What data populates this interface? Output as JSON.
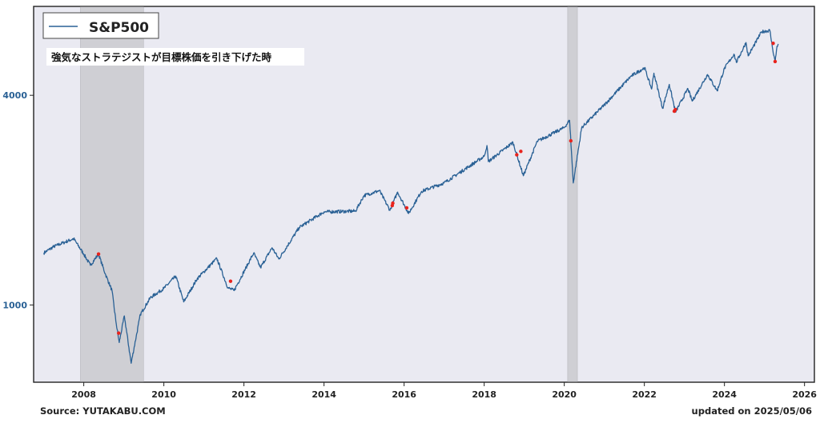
{
  "chart_data": {
    "type": "line",
    "legend": {
      "label": "S&P500",
      "placement": "top-left"
    },
    "annotation": "強気なストラテジストが目標株価を引き下げた時",
    "y_scale": "log",
    "y_ticks": [
      {
        "value": 1000,
        "label": "1000"
      },
      {
        "value": 4000,
        "label": "4000"
      }
    ],
    "x_ticks": [
      "2008",
      "2010",
      "2012",
      "2014",
      "2016",
      "2018",
      "2020",
      "2022",
      "2024",
      "2026"
    ],
    "xlim": [
      "2006-10-01",
      "2026-04-01"
    ],
    "ylim": [
      600,
      7200
    ],
    "grid": false,
    "series": [
      {
        "name": "S&P500",
        "color": "#2a6195",
        "points": [
          [
            "2007-01-01",
            1410
          ],
          [
            "2007-04-01",
            1470
          ],
          [
            "2007-07-01",
            1510
          ],
          [
            "2007-10-01",
            1550
          ],
          [
            "2008-01-01",
            1400
          ],
          [
            "2008-03-01",
            1300
          ],
          [
            "2008-05-15",
            1400
          ],
          [
            "2008-07-15",
            1230
          ],
          [
            "2008-09-15",
            1100
          ],
          [
            "2008-10-20",
            900
          ],
          [
            "2008-11-20",
            780
          ],
          [
            "2009-01-06",
            930
          ],
          [
            "2009-03-09",
            680
          ],
          [
            "2009-06-01",
            940
          ],
          [
            "2009-09-01",
            1050
          ],
          [
            "2009-12-31",
            1115
          ],
          [
            "2010-04-20",
            1210
          ],
          [
            "2010-07-01",
            1020
          ],
          [
            "2010-11-01",
            1190
          ],
          [
            "2011-04-29",
            1360
          ],
          [
            "2011-08-08",
            1120
          ],
          [
            "2011-10-03",
            1100
          ],
          [
            "2012-03-30",
            1410
          ],
          [
            "2012-06-01",
            1280
          ],
          [
            "2012-09-14",
            1460
          ],
          [
            "2012-11-15",
            1355
          ],
          [
            "2013-05-21",
            1670
          ],
          [
            "2013-12-31",
            1850
          ],
          [
            "2014-10-15",
            1860
          ],
          [
            "2014-12-31",
            2060
          ],
          [
            "2015-05-21",
            2130
          ],
          [
            "2015-08-25",
            1870
          ],
          [
            "2015-11-03",
            2110
          ],
          [
            "2016-02-11",
            1830
          ],
          [
            "2016-06-08",
            2120
          ],
          [
            "2016-12-31",
            2240
          ],
          [
            "2017-12-31",
            2670
          ],
          [
            "2018-01-26",
            2870
          ],
          [
            "2018-02-08",
            2580
          ],
          [
            "2018-09-20",
            2930
          ],
          [
            "2018-12-24",
            2350
          ],
          [
            "2019-04-30",
            2950
          ],
          [
            "2019-12-31",
            3230
          ],
          [
            "2020-02-19",
            3390
          ],
          [
            "2020-03-23",
            2240
          ],
          [
            "2020-06-08",
            3230
          ],
          [
            "2020-12-31",
            3750
          ],
          [
            "2021-09-02",
            4540
          ],
          [
            "2022-01-03",
            4800
          ],
          [
            "2022-03-08",
            4170
          ],
          [
            "2022-03-29",
            4630
          ],
          [
            "2022-06-16",
            3670
          ],
          [
            "2022-08-16",
            4300
          ],
          [
            "2022-10-12",
            3580
          ],
          [
            "2023-02-02",
            4180
          ],
          [
            "2023-03-13",
            3850
          ],
          [
            "2023-07-31",
            4590
          ],
          [
            "2023-10-27",
            4120
          ],
          [
            "2023-12-31",
            4770
          ],
          [
            "2024-03-28",
            5250
          ],
          [
            "2024-04-19",
            4970
          ],
          [
            "2024-07-16",
            5670
          ],
          [
            "2024-08-05",
            5190
          ],
          [
            "2024-12-06",
            6090
          ],
          [
            "2025-02-19",
            6140
          ],
          [
            "2025-03-13",
            5520
          ],
          [
            "2025-04-08",
            4980
          ],
          [
            "2025-04-25",
            5530
          ],
          [
            "2025-05-06",
            5620
          ]
        ]
      }
    ],
    "recessions": [
      {
        "start": "2007-12-01",
        "end": "2009-06-30"
      },
      {
        "start": "2020-02-01",
        "end": "2020-04-30"
      }
    ],
    "markers": {
      "color": "#e8231d",
      "points": [
        [
          "2008-05-15",
          1400
        ],
        [
          "2008-11-15",
          830
        ],
        [
          "2011-09-01",
          1170
        ],
        [
          "2015-09-15",
          1930
        ],
        [
          "2015-09-20",
          1960
        ],
        [
          "2016-01-25",
          1900
        ],
        [
          "2018-10-25",
          2700
        ],
        [
          "2018-12-01",
          2760
        ],
        [
          "2020-03-01",
          2960
        ],
        [
          "2022-10-01",
          3600
        ],
        [
          "2022-10-10",
          3640
        ],
        [
          "2025-03-21",
          5640
        ],
        [
          "2025-04-08",
          5000
        ]
      ]
    }
  },
  "footer": {
    "source": "Source: YUTAKABU.COM",
    "updated": "updated on 2025/05/06"
  }
}
